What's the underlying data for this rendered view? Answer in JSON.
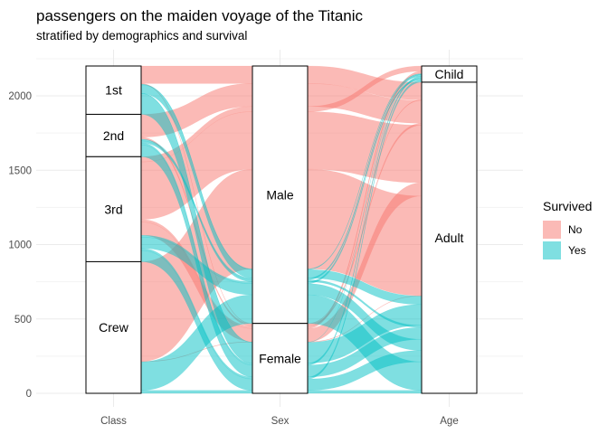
{
  "chart_data": {
    "type": "alluvial",
    "title": "passengers on the maiden voyage of the Titanic",
    "subtitle": "stratified by demographics and survival",
    "axes": [
      "Class",
      "Sex",
      "Age"
    ],
    "y_ticks": [
      0,
      500,
      1000,
      1500,
      2000
    ],
    "ylim": [
      0,
      2201
    ],
    "strata": {
      "Class": [
        {
          "label": "1st",
          "value": 325
        },
        {
          "label": "2nd",
          "value": 285
        },
        {
          "label": "3rd",
          "value": 706
        },
        {
          "label": "Crew",
          "value": 885
        }
      ],
      "Sex": [
        {
          "label": "Male",
          "value": 1731
        },
        {
          "label": "Female",
          "value": 470
        }
      ],
      "Age": [
        {
          "label": "Child",
          "value": 109
        },
        {
          "label": "Adult",
          "value": 2092
        }
      ]
    },
    "legend": {
      "title": "Survived",
      "entries": [
        {
          "label": "No",
          "color": "#f8766d"
        },
        {
          "label": "Yes",
          "color": "#00bfc4"
        }
      ]
    },
    "flows": [
      {
        "class": "1st",
        "sex": "Male",
        "age": "Child",
        "survived": "No",
        "value": 0
      },
      {
        "class": "2nd",
        "sex": "Male",
        "age": "Child",
        "survived": "No",
        "value": 0
      },
      {
        "class": "3rd",
        "sex": "Male",
        "age": "Child",
        "survived": "No",
        "value": 35
      },
      {
        "class": "Crew",
        "sex": "Male",
        "age": "Child",
        "survived": "No",
        "value": 0
      },
      {
        "class": "1st",
        "sex": "Female",
        "age": "Child",
        "survived": "No",
        "value": 0
      },
      {
        "class": "2nd",
        "sex": "Female",
        "age": "Child",
        "survived": "No",
        "value": 0
      },
      {
        "class": "3rd",
        "sex": "Female",
        "age": "Child",
        "survived": "No",
        "value": 17
      },
      {
        "class": "Crew",
        "sex": "Female",
        "age": "Child",
        "survived": "No",
        "value": 0
      },
      {
        "class": "1st",
        "sex": "Male",
        "age": "Adult",
        "survived": "No",
        "value": 118
      },
      {
        "class": "2nd",
        "sex": "Male",
        "age": "Adult",
        "survived": "No",
        "value": 154
      },
      {
        "class": "3rd",
        "sex": "Male",
        "age": "Adult",
        "survived": "No",
        "value": 387
      },
      {
        "class": "Crew",
        "sex": "Male",
        "age": "Adult",
        "survived": "No",
        "value": 670
      },
      {
        "class": "1st",
        "sex": "Female",
        "age": "Adult",
        "survived": "No",
        "value": 4
      },
      {
        "class": "2nd",
        "sex": "Female",
        "age": "Adult",
        "survived": "No",
        "value": 13
      },
      {
        "class": "3rd",
        "sex": "Female",
        "age": "Adult",
        "survived": "No",
        "value": 89
      },
      {
        "class": "Crew",
        "sex": "Female",
        "age": "Adult",
        "survived": "No",
        "value": 3
      },
      {
        "class": "1st",
        "sex": "Male",
        "age": "Child",
        "survived": "Yes",
        "value": 5
      },
      {
        "class": "2nd",
        "sex": "Male",
        "age": "Child",
        "survived": "Yes",
        "value": 11
      },
      {
        "class": "3rd",
        "sex": "Male",
        "age": "Child",
        "survived": "Yes",
        "value": 13
      },
      {
        "class": "Crew",
        "sex": "Male",
        "age": "Child",
        "survived": "Yes",
        "value": 0
      },
      {
        "class": "1st",
        "sex": "Female",
        "age": "Child",
        "survived": "Yes",
        "value": 1
      },
      {
        "class": "2nd",
        "sex": "Female",
        "age": "Child",
        "survived": "Yes",
        "value": 13
      },
      {
        "class": "3rd",
        "sex": "Female",
        "age": "Child",
        "survived": "Yes",
        "value": 14
      },
      {
        "class": "Crew",
        "sex": "Female",
        "age": "Child",
        "survived": "Yes",
        "value": 0
      },
      {
        "class": "1st",
        "sex": "Male",
        "age": "Adult",
        "survived": "Yes",
        "value": 57
      },
      {
        "class": "2nd",
        "sex": "Male",
        "age": "Adult",
        "survived": "Yes",
        "value": 14
      },
      {
        "class": "3rd",
        "sex": "Male",
        "age": "Adult",
        "survived": "Yes",
        "value": 75
      },
      {
        "class": "Crew",
        "sex": "Male",
        "age": "Adult",
        "survived": "Yes",
        "value": 192
      },
      {
        "class": "1st",
        "sex": "Female",
        "age": "Adult",
        "survived": "Yes",
        "value": 140
      },
      {
        "class": "2nd",
        "sex": "Female",
        "age": "Adult",
        "survived": "Yes",
        "value": 80
      },
      {
        "class": "3rd",
        "sex": "Female",
        "age": "Adult",
        "survived": "Yes",
        "value": 76
      },
      {
        "class": "Crew",
        "sex": "Female",
        "age": "Adult",
        "survived": "Yes",
        "value": 20
      }
    ]
  }
}
